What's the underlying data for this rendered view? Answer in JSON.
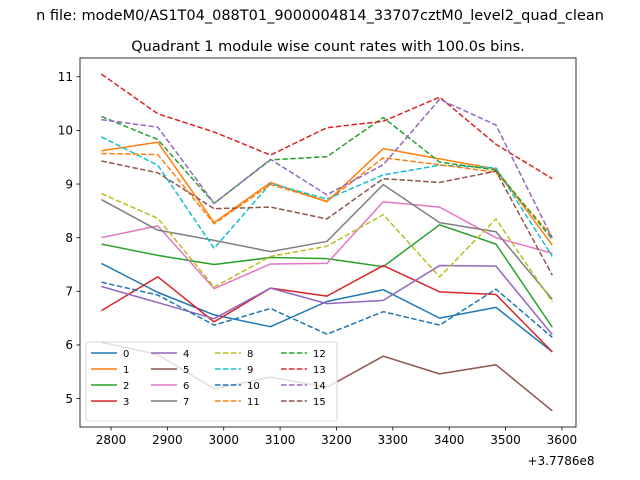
{
  "chart_data": {
    "type": "line",
    "suptitle": "n file: modeM0/AS1T04_088T01_9000004814_33707cztM0_level2_quad_clean",
    "title": "Quadrant 1 module wise count rates with 100.0s bins.",
    "xlabel": "",
    "ylabel": "",
    "x_offset_label": "+3.7786e8",
    "xlim": [
      2745,
      3625
    ],
    "ylim": [
      4.47,
      11.35
    ],
    "x_ticks": [
      2800,
      2900,
      3000,
      3100,
      3200,
      3300,
      3400,
      3500,
      3600
    ],
    "y_ticks": [
      5,
      6,
      7,
      8,
      9,
      10,
      11
    ],
    "grid": false,
    "legend_position": "lower-left",
    "legend_columns": 4,
    "x": [
      2783,
      2883,
      2983,
      3083,
      3183,
      3283,
      3383,
      3483,
      3583
    ],
    "series": [
      {
        "name": "0",
        "color": "#1f77b4",
        "dash": "solid",
        "values": [
          7.52,
          6.98,
          6.56,
          6.34,
          6.81,
          7.03,
          6.5,
          6.7,
          5.87
        ]
      },
      {
        "name": "1",
        "color": "#ff7f0e",
        "dash": "solid",
        "values": [
          9.62,
          9.78,
          8.28,
          9.03,
          8.67,
          9.66,
          9.47,
          9.28,
          7.86
        ]
      },
      {
        "name": "2",
        "color": "#2ca02c",
        "dash": "solid",
        "values": [
          7.88,
          7.67,
          7.5,
          7.63,
          7.61,
          7.46,
          8.24,
          7.88,
          6.33
        ]
      },
      {
        "name": "3",
        "color": "#d62728",
        "dash": "solid",
        "values": [
          6.64,
          7.27,
          6.43,
          7.06,
          6.91,
          7.48,
          6.99,
          6.94,
          5.87
        ]
      },
      {
        "name": "4",
        "color": "#9467bd",
        "dash": "solid",
        "values": [
          7.09,
          6.79,
          6.49,
          7.06,
          6.77,
          6.83,
          7.48,
          7.47,
          6.19
        ]
      },
      {
        "name": "5",
        "color": "#8c564b",
        "dash": "solid",
        "values": [
          6.05,
          5.82,
          5.18,
          5.4,
          5.21,
          5.79,
          5.46,
          5.63,
          4.77
        ]
      },
      {
        "name": "6",
        "color": "#e377c2",
        "dash": "solid",
        "values": [
          8.0,
          8.22,
          7.05,
          7.51,
          7.52,
          8.67,
          8.57,
          8.0,
          7.71
        ]
      },
      {
        "name": "7",
        "color": "#7f7f7f",
        "dash": "solid",
        "values": [
          8.71,
          8.14,
          7.95,
          7.74,
          7.93,
          8.99,
          8.28,
          8.11,
          6.85
        ]
      },
      {
        "name": "8",
        "color": "#bcbd22",
        "dash": "dashed",
        "values": [
          8.82,
          8.36,
          7.08,
          7.65,
          7.84,
          8.43,
          7.27,
          8.35,
          6.8
        ]
      },
      {
        "name": "9",
        "color": "#17becf",
        "dash": "dashed",
        "values": [
          9.88,
          9.35,
          7.8,
          9.01,
          8.72,
          9.17,
          9.35,
          9.3,
          7.65
        ]
      },
      {
        "name": "10",
        "color": "#1f77b4",
        "dash": "dashed",
        "values": [
          7.17,
          6.93,
          6.37,
          6.68,
          6.2,
          6.62,
          6.37,
          7.04,
          6.14
        ]
      },
      {
        "name": "11",
        "color": "#ff7f0e",
        "dash": "dashed",
        "values": [
          9.57,
          9.55,
          8.26,
          8.99,
          8.68,
          9.49,
          9.36,
          9.22,
          8.02
        ]
      },
      {
        "name": "12",
        "color": "#2ca02c",
        "dash": "dashed",
        "values": [
          10.26,
          9.83,
          8.64,
          9.45,
          9.51,
          10.24,
          9.41,
          9.26,
          7.97
        ]
      },
      {
        "name": "13",
        "color": "#d62728",
        "dash": "dashed",
        "values": [
          11.05,
          10.31,
          9.97,
          9.54,
          10.05,
          10.17,
          10.62,
          9.74,
          9.1
        ]
      },
      {
        "name": "14",
        "color": "#9467bd",
        "dash": "dashed",
        "values": [
          10.2,
          10.06,
          8.64,
          9.46,
          8.8,
          9.36,
          10.58,
          10.1,
          7.99
        ]
      },
      {
        "name": "15",
        "color": "#8c564b",
        "dash": "dashed",
        "values": [
          9.43,
          9.21,
          8.54,
          8.57,
          8.35,
          9.1,
          9.03,
          9.24,
          7.3
        ]
      }
    ]
  }
}
